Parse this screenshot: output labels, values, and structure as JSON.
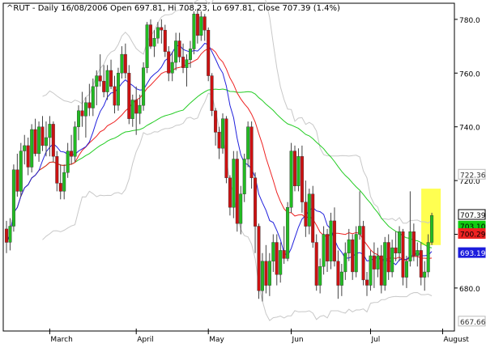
{
  "chart_data": {
    "type": "candlestick",
    "title": "^RUT - Daily 16/08/2006 Open 697.81, Hi 708.23, Lo 697.81, Close 707.39 (1.4%)",
    "ylim": [
      664,
      786
    ],
    "y_ticks": [
      680,
      700,
      720,
      740,
      760,
      780
    ],
    "x_tick_labels": [
      {
        "label": "March",
        "index": 12
      },
      {
        "label": "April",
        "index": 36
      },
      {
        "label": "May",
        "index": 56
      },
      {
        "label": "Jun",
        "index": 79
      },
      {
        "label": "Jul",
        "index": 101
      },
      {
        "label": "August",
        "index": 121
      }
    ],
    "bars": [
      [
        702,
        705,
        693,
        697
      ],
      [
        697,
        706,
        694,
        703
      ],
      [
        703,
        726,
        701,
        724
      ],
      [
        724,
        730,
        714,
        716
      ],
      [
        716,
        734,
        714,
        731
      ],
      [
        731,
        737,
        726,
        733
      ],
      [
        733,
        736,
        722,
        725
      ],
      [
        725,
        741,
        723,
        739
      ],
      [
        739,
        743,
        729,
        730
      ],
      [
        730,
        742,
        727,
        740
      ],
      [
        740,
        744,
        731,
        733
      ],
      [
        733,
        742,
        729,
        736
      ],
      [
        736,
        744,
        729,
        741
      ],
      [
        741,
        742,
        727,
        729
      ],
      [
        729,
        731,
        716,
        719
      ],
      [
        719,
        726,
        713,
        716
      ],
      [
        716,
        726,
        713,
        723
      ],
      [
        723,
        734,
        721,
        731
      ],
      [
        731,
        737,
        726,
        729
      ],
      [
        729,
        742,
        727,
        740
      ],
      [
        740,
        748,
        735,
        746
      ],
      [
        746,
        753,
        740,
        744
      ],
      [
        744,
        751,
        736,
        749
      ],
      [
        749,
        756,
        744,
        747
      ],
      [
        747,
        758,
        744,
        755
      ],
      [
        755,
        761,
        748,
        759
      ],
      [
        759,
        767,
        755,
        757
      ],
      [
        757,
        763,
        751,
        753
      ],
      [
        753,
        763,
        750,
        761
      ],
      [
        761,
        765,
        754,
        755
      ],
      [
        755,
        759,
        745,
        748
      ],
      [
        748,
        762,
        746,
        760
      ],
      [
        760,
        770,
        758,
        767
      ],
      [
        767,
        771,
        758,
        760
      ],
      [
        760,
        763,
        741,
        743
      ],
      [
        743,
        752,
        740,
        750
      ],
      [
        750,
        755,
        737,
        745
      ],
      [
        745,
        752,
        741,
        748
      ],
      [
        748,
        764,
        746,
        762
      ],
      [
        762,
        779,
        760,
        778
      ],
      [
        778,
        780,
        769,
        770
      ],
      [
        770,
        776,
        766,
        773
      ],
      [
        773,
        779,
        771,
        777
      ],
      [
        777,
        780,
        771,
        776
      ],
      [
        776,
        778,
        766,
        768
      ],
      [
        768,
        770,
        757,
        760
      ],
      [
        760,
        768,
        757,
        764
      ],
      [
        764,
        775,
        761,
        772
      ],
      [
        772,
        775,
        764,
        766
      ],
      [
        766,
        771,
        760,
        762
      ],
      [
        762,
        767,
        755,
        765
      ],
      [
        765,
        772,
        762,
        769
      ],
      [
        769,
        783,
        767,
        782
      ],
      [
        782,
        784,
        771,
        774
      ],
      [
        774,
        783,
        772,
        781
      ],
      [
        781,
        782,
        772,
        776
      ],
      [
        776,
        777,
        757,
        759
      ],
      [
        759,
        760,
        744,
        746
      ],
      [
        746,
        747,
        733,
        738
      ],
      [
        738,
        740,
        728,
        732
      ],
      [
        732,
        745,
        730,
        743
      ],
      [
        743,
        744,
        719,
        721
      ],
      [
        721,
        722,
        707,
        710
      ],
      [
        710,
        731,
        706,
        728
      ],
      [
        728,
        731,
        701,
        704
      ],
      [
        704,
        718,
        700,
        715
      ],
      [
        715,
        730,
        712,
        728
      ],
      [
        728,
        742,
        725,
        740
      ],
      [
        740,
        742,
        717,
        721
      ],
      [
        721,
        723,
        693,
        703
      ],
      [
        703,
        704,
        676,
        679
      ],
      [
        679,
        693,
        675,
        690
      ],
      [
        690,
        696,
        678,
        681
      ],
      [
        681,
        693,
        677,
        690
      ],
      [
        690,
        700,
        686,
        697
      ],
      [
        697,
        700,
        681,
        685
      ],
      [
        685,
        697,
        682,
        694
      ],
      [
        694,
        703,
        689,
        691
      ],
      [
        691,
        712,
        690,
        710
      ],
      [
        710,
        734,
        708,
        731
      ],
      [
        731,
        733,
        716,
        718
      ],
      [
        718,
        732,
        716,
        729
      ],
      [
        729,
        733,
        708,
        712
      ],
      [
        712,
        720,
        699,
        703
      ],
      [
        703,
        717,
        700,
        715
      ],
      [
        715,
        718,
        695,
        697
      ],
      [
        697,
        700,
        679,
        681
      ],
      [
        681,
        691,
        678,
        688
      ],
      [
        688,
        703,
        685,
        700
      ],
      [
        700,
        702,
        686,
        690
      ],
      [
        690,
        708,
        687,
        705
      ],
      [
        705,
        710,
        688,
        690
      ],
      [
        690,
        694,
        676,
        681
      ],
      [
        681,
        689,
        677,
        686
      ],
      [
        686,
        697,
        683,
        693
      ],
      [
        693,
        702,
        690,
        698
      ],
      [
        698,
        700,
        683,
        686
      ],
      [
        686,
        703,
        684,
        700
      ],
      [
        700,
        716,
        698,
        703
      ],
      [
        703,
        705,
        681,
        683
      ],
      [
        683,
        686,
        677,
        681
      ],
      [
        681,
        694,
        679,
        692
      ],
      [
        692,
        697,
        680,
        687
      ],
      [
        687,
        695,
        684,
        692
      ],
      [
        692,
        696,
        678,
        681
      ],
      [
        681,
        699,
        679,
        697
      ],
      [
        697,
        700,
        683,
        686
      ],
      [
        686,
        698,
        684,
        695
      ],
      [
        695,
        701,
        690,
        693
      ],
      [
        693,
        703,
        690,
        701
      ],
      [
        701,
        702,
        681,
        684
      ],
      [
        684,
        692,
        680,
        690
      ],
      [
        690,
        716,
        688,
        701
      ],
      [
        701,
        704,
        690,
        692
      ],
      [
        692,
        697,
        688,
        694
      ],
      [
        694,
        697,
        681,
        684
      ],
      [
        684,
        690,
        679,
        686
      ],
      [
        686,
        700,
        684,
        697
      ],
      [
        697,
        708,
        696,
        707
      ]
    ],
    "current_labels": [
      {
        "text": "722.362",
        "value": 722.362,
        "color": "#ffffff",
        "text_color": "#333333",
        "border": "#bbbbbb"
      },
      {
        "text": "707.39",
        "value": 707.39,
        "color": "#ffffff",
        "text_color": "#000000",
        "border": "#000000"
      },
      {
        "text": "703.101",
        "value": 703.101,
        "color": "#11cc11",
        "text_color": "#000000",
        "border": "#11cc11"
      },
      {
        "text": "700.29",
        "value": 700.29,
        "color": "#ee2222",
        "text_color": "#000000",
        "border": "#ee2222"
      },
      {
        "text": "693.19",
        "value": 693.19,
        "color": "#1c1cdd",
        "text_color": "#ffffff",
        "border": "#1c1cdd"
      },
      {
        "text": "667.663",
        "value": 667.663,
        "color": "#ffffff",
        "text_color": "#333333",
        "border": "#bbbbbb"
      }
    ],
    "colors": {
      "up": "#22bb22",
      "down": "#cc1111",
      "ma_short": "#2222dd",
      "ma_mid": "#ee2222",
      "ma_long": "#22cc22",
      "band": "#c8c8c8",
      "highlight": "#ffff33"
    },
    "grid": false
  }
}
